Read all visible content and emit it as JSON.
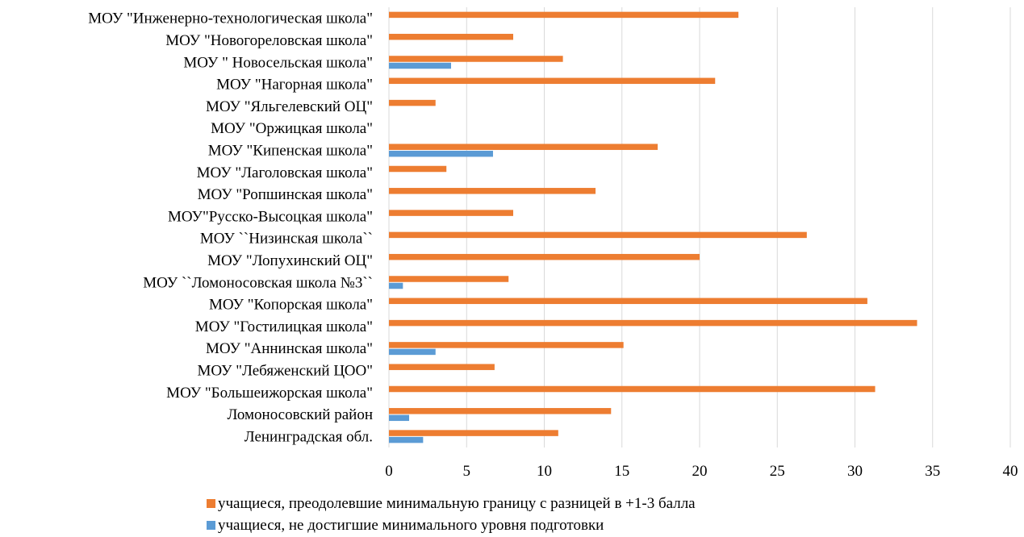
{
  "chart_data": {
    "type": "bar",
    "orientation": "horizontal",
    "categories": [
      "МОУ \"Инженерно-технологическая школа\"",
      "МОУ \"Новогореловская  школа\"",
      "МОУ \" Новосельская школа\"",
      "МОУ \"Нагорная  школа\"",
      "МОУ \"Яльгелевский ОЦ\"",
      "МОУ \"Оржицкая  школа\"",
      "МОУ \"Кипенская  школа\"",
      "МОУ \"Лаголовская  школа\"",
      "МОУ \"Ропшинская  школа\"",
      "МОУ\"Русско-Высоцкая  школа\"",
      "МОУ ``Низинская  школа``",
      "МОУ \"Лопухинский ОЦ\"",
      "МОУ ``Ломоносовская  школа №3``",
      "МОУ \"Копорская  школа\"",
      "МОУ \"Гостилицкая  школа\"",
      "МОУ \"Аннинская  школа\"",
      "МОУ \"Лебяженский ЦОО\"",
      "МОУ \"Большеижорская  школа\"",
      "Ломоносовский  район",
      "Ленинградская обл."
    ],
    "series": [
      {
        "name": "учащиеся, преодолевшие минимальную границу с разницей в +1-3 балла",
        "color": "#ED7D31",
        "values": [
          22.5,
          8.0,
          11.2,
          21.0,
          3.0,
          0,
          17.3,
          3.7,
          13.3,
          8.0,
          26.9,
          20.0,
          7.7,
          30.8,
          34.0,
          15.1,
          6.8,
          31.3,
          14.3,
          10.9
        ]
      },
      {
        "name": "учащиеся, не достигшие минимального уровня подготовки",
        "color": "#5B9BD5",
        "values": [
          0,
          0,
          4.0,
          0,
          0,
          0,
          6.7,
          0,
          0,
          0,
          0,
          0,
          0.9,
          0,
          0,
          3.0,
          0,
          0,
          1.3,
          2.2
        ]
      }
    ],
    "xlim": [
      0,
      40
    ],
    "xticks": [
      "0",
      "5",
      "10",
      "15",
      "20",
      "25",
      "30",
      "35",
      "40"
    ],
    "grid": true,
    "legend": "bottom"
  }
}
